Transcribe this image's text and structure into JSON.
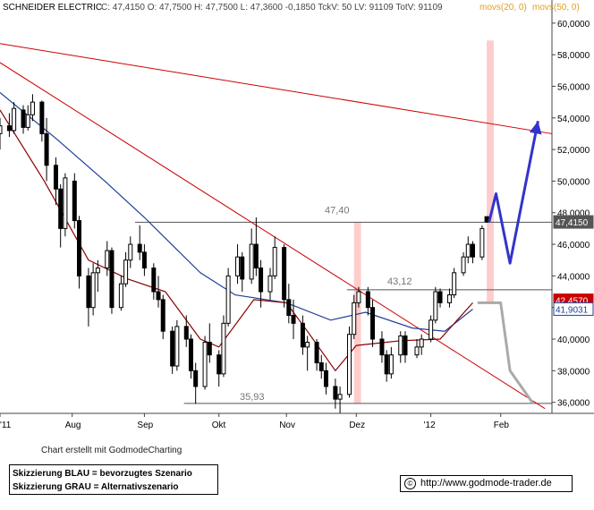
{
  "header": {
    "symbol": "SCHNEIDER ELECTRIC",
    "quote": "C: 47,4150 O: 47,7500 H: 47,7500 L: 47,3600 -0,1850 TckV: 50 LV: 91109 TotV: 91109",
    "ma1_label": "movs(20, 0)",
    "ma2_label": "movs(50, 0)"
  },
  "credit": "Chart erstellt mit GodmodeCharting",
  "legend": {
    "line1": "Skizzierung BLAU = bevorzugtes Szenario",
    "line2": "Skizzierung GRAU = Alternativszenario"
  },
  "url": "http://www.godmode-trader.de",
  "copyright_icon": "copyright-icon",
  "colors": {
    "candle": "#000000",
    "ma20": "#8b0000",
    "ma50": "#1f3f9a",
    "trendline": "#cc0000",
    "level_line": "#555555",
    "highlight": "#ffcccc",
    "scenario_blue": "#3333cc",
    "scenario_gray": "#aaaaaa",
    "last_price_box": "#555555",
    "ma20_box": "#cc0000",
    "ma50_box": "#1f3f9a"
  },
  "chart_data": {
    "type": "candlestick",
    "ylim": [
      35.3,
      60.5
    ],
    "y_ticks": [
      "36,0000",
      "38,0000",
      "40,0000",
      "42,0000",
      "44,0000",
      "46,0000",
      "48,0000",
      "50,0000",
      "52,0000",
      "54,0000",
      "56,0000",
      "58,0000",
      "60,0000"
    ],
    "x_labels": [
      {
        "label": "'11",
        "date": "2011-07-01"
      },
      {
        "label": "Aug",
        "date": "2011-08-01"
      },
      {
        "label": "Sep",
        "date": "2011-09-01"
      },
      {
        "label": "Okt",
        "date": "2011-10-03"
      },
      {
        "label": "Nov",
        "date": "2011-11-01"
      },
      {
        "label": "Dez",
        "date": "2011-12-01"
      },
      {
        "label": "'12",
        "date": "2012-01-02"
      },
      {
        "label": "Feb",
        "date": "2012-02-01"
      }
    ],
    "x_range": [
      "2011-07-01",
      "2012-02-23"
    ],
    "last_price": "47,4150",
    "ma20_value": "42,4570",
    "ma50_value": "41,9031",
    "levels": [
      {
        "value": 47.4,
        "label": "47,40",
        "start": "2011-08-28",
        "end": "2012-02-23"
      },
      {
        "value": 43.12,
        "label": "43,12",
        "start": "2011-11-27",
        "end": "2012-02-23"
      },
      {
        "value": 35.93,
        "label": "35,93",
        "start": "2011-09-18",
        "end": "2012-02-23"
      }
    ],
    "trendlines": [
      {
        "from": [
          "2011-07-01",
          58.7
        ],
        "to": [
          "2012-02-23",
          53.0
        ]
      },
      {
        "from": [
          "2011-07-01",
          57.5
        ],
        "to": [
          "2012-02-20",
          35.6
        ]
      }
    ],
    "highlights": [
      {
        "start": "2011-11-30",
        "end": "2011-12-03",
        "y1": 35.9,
        "y2": 47.4
      },
      {
        "start": "2012-01-26",
        "end": "2012-01-29",
        "y1": 42.3,
        "y2": 58.9
      }
    ],
    "blue_scenario": [
      [
        "2012-01-27",
        47.4
      ],
      [
        "2012-01-30",
        49.2
      ],
      [
        "2012-02-05",
        44.8
      ],
      [
        "2012-02-17",
        53.8
      ]
    ],
    "gray_scenario": [
      [
        "2012-01-22",
        42.3
      ],
      [
        "2012-01-29",
        42.3
      ],
      [
        "2012-02-01",
        42.3
      ],
      [
        "2012-02-05",
        38.0
      ],
      [
        "2012-02-15",
        35.9
      ]
    ],
    "ma20": [
      [
        "2011-07-01",
        54.5
      ],
      [
        "2011-07-20",
        50.0
      ],
      [
        "2011-08-08",
        45.0
      ],
      [
        "2011-08-25",
        43.8
      ],
      [
        "2011-09-10",
        43.0
      ],
      [
        "2011-09-25",
        40.0
      ],
      [
        "2011-10-03",
        39.5
      ],
      [
        "2011-10-18",
        42.5
      ],
      [
        "2011-11-01",
        42.3
      ],
      [
        "2011-11-10",
        40.5
      ],
      [
        "2011-11-22",
        38.0
      ],
      [
        "2011-12-01",
        39.6
      ],
      [
        "2011-12-20",
        39.9
      ],
      [
        "2012-01-06",
        40.0
      ],
      [
        "2012-01-20",
        42.3
      ]
    ],
    "ma50": [
      [
        "2011-07-01",
        55.6
      ],
      [
        "2011-07-25",
        52.7
      ],
      [
        "2011-08-15",
        50.0
      ],
      [
        "2011-09-01",
        47.7
      ],
      [
        "2011-09-25",
        44.2
      ],
      [
        "2011-10-10",
        42.8
      ],
      [
        "2011-11-01",
        42.3
      ],
      [
        "2011-11-20",
        41.2
      ],
      [
        "2011-12-05",
        41.7
      ],
      [
        "2011-12-25",
        40.7
      ],
      [
        "2012-01-08",
        40.5
      ],
      [
        "2012-01-20",
        41.9
      ]
    ],
    "candles": [
      {
        "d": "2011-07-01",
        "o": 53.0,
        "h": 54.0,
        "l": 52.0,
        "c": 53.5
      },
      {
        "d": "2011-07-05",
        "o": 53.5,
        "h": 54.3,
        "l": 52.8,
        "c": 53.2
      },
      {
        "d": "2011-07-07",
        "o": 53.2,
        "h": 55.0,
        "l": 53.0,
        "c": 54.6
      },
      {
        "d": "2011-07-11",
        "o": 54.5,
        "h": 54.8,
        "l": 53.0,
        "c": 53.4
      },
      {
        "d": "2011-07-13",
        "o": 53.4,
        "h": 54.8,
        "l": 53.2,
        "c": 54.2
      },
      {
        "d": "2011-07-15",
        "o": 54.2,
        "h": 55.5,
        "l": 53.8,
        "c": 55.0
      },
      {
        "d": "2011-07-19",
        "o": 55.0,
        "h": 55.1,
        "l": 52.5,
        "c": 53.0
      },
      {
        "d": "2011-07-21",
        "o": 53.0,
        "h": 54.0,
        "l": 50.0,
        "c": 51.0
      },
      {
        "d": "2011-07-25",
        "o": 51.0,
        "h": 51.5,
        "l": 48.5,
        "c": 49.5
      },
      {
        "d": "2011-07-27",
        "o": 49.5,
        "h": 49.8,
        "l": 45.8,
        "c": 47.0
      },
      {
        "d": "2011-07-29",
        "o": 47.0,
        "h": 50.5,
        "l": 46.5,
        "c": 50.2
      },
      {
        "d": "2011-08-02",
        "o": 50.0,
        "h": 50.5,
        "l": 47.0,
        "c": 47.5
      },
      {
        "d": "2011-08-04",
        "o": 47.5,
        "h": 47.8,
        "l": 43.2,
        "c": 44.0
      },
      {
        "d": "2011-08-08",
        "o": 44.0,
        "h": 44.5,
        "l": 40.8,
        "c": 42.0
      },
      {
        "d": "2011-08-10",
        "o": 42.0,
        "h": 44.8,
        "l": 41.5,
        "c": 44.2
      },
      {
        "d": "2011-08-12",
        "o": 44.2,
        "h": 45.0,
        "l": 43.0,
        "c": 44.5
      },
      {
        "d": "2011-08-16",
        "o": 44.5,
        "h": 46.2,
        "l": 44.0,
        "c": 45.6
      },
      {
        "d": "2011-08-18",
        "o": 45.6,
        "h": 45.8,
        "l": 41.6,
        "c": 42.0
      },
      {
        "d": "2011-08-22",
        "o": 42.0,
        "h": 44.0,
        "l": 41.8,
        "c": 43.5
      },
      {
        "d": "2011-08-24",
        "o": 43.5,
        "h": 45.5,
        "l": 43.3,
        "c": 45.0
      },
      {
        "d": "2011-08-26",
        "o": 45.0,
        "h": 46.5,
        "l": 44.5,
        "c": 46.0
      },
      {
        "d": "2011-08-30",
        "o": 46.0,
        "h": 47.2,
        "l": 45.0,
        "c": 45.5
      },
      {
        "d": "2011-09-01",
        "o": 45.5,
        "h": 46.0,
        "l": 44.0,
        "c": 44.5
      },
      {
        "d": "2011-09-05",
        "o": 44.5,
        "h": 44.8,
        "l": 42.5,
        "c": 43.0
      },
      {
        "d": "2011-09-07",
        "o": 43.0,
        "h": 44.0,
        "l": 42.0,
        "c": 42.5
      },
      {
        "d": "2011-09-09",
        "o": 42.5,
        "h": 42.8,
        "l": 40.0,
        "c": 40.5
      },
      {
        "d": "2011-09-13",
        "o": 40.5,
        "h": 40.8,
        "l": 37.8,
        "c": 38.3
      },
      {
        "d": "2011-09-15",
        "o": 38.3,
        "h": 41.2,
        "l": 38.0,
        "c": 40.8
      },
      {
        "d": "2011-09-19",
        "o": 40.8,
        "h": 41.5,
        "l": 39.5,
        "c": 40.0
      },
      {
        "d": "2011-09-21",
        "o": 40.0,
        "h": 40.3,
        "l": 37.5,
        "c": 38.0
      },
      {
        "d": "2011-09-23",
        "o": 38.0,
        "h": 38.5,
        "l": 35.9,
        "c": 37.0
      },
      {
        "d": "2011-09-27",
        "o": 37.0,
        "h": 40.2,
        "l": 36.8,
        "c": 39.8
      },
      {
        "d": "2011-09-29",
        "o": 39.8,
        "h": 41.0,
        "l": 38.5,
        "c": 39.0
      },
      {
        "d": "2011-10-03",
        "o": 39.0,
        "h": 39.3,
        "l": 37.0,
        "c": 37.8
      },
      {
        "d": "2011-10-05",
        "o": 37.8,
        "h": 41.5,
        "l": 37.6,
        "c": 41.0
      },
      {
        "d": "2011-10-07",
        "o": 41.0,
        "h": 44.5,
        "l": 40.8,
        "c": 44.0
      },
      {
        "d": "2011-10-11",
        "o": 44.0,
        "h": 46.0,
        "l": 43.5,
        "c": 45.2
      },
      {
        "d": "2011-10-13",
        "o": 45.2,
        "h": 45.5,
        "l": 43.0,
        "c": 43.8
      },
      {
        "d": "2011-10-17",
        "o": 43.8,
        "h": 47.0,
        "l": 43.5,
        "c": 46.0
      },
      {
        "d": "2011-10-19",
        "o": 46.0,
        "h": 47.7,
        "l": 44.0,
        "c": 44.5
      },
      {
        "d": "2011-10-21",
        "o": 44.5,
        "h": 45.0,
        "l": 42.0,
        "c": 43.0
      },
      {
        "d": "2011-10-25",
        "o": 43.0,
        "h": 44.5,
        "l": 42.5,
        "c": 44.0
      },
      {
        "d": "2011-10-27",
        "o": 44.0,
        "h": 46.5,
        "l": 43.8,
        "c": 45.8
      },
      {
        "d": "2011-10-31",
        "o": 45.8,
        "h": 46.0,
        "l": 42.0,
        "c": 42.5
      },
      {
        "d": "2011-11-02",
        "o": 42.5,
        "h": 43.5,
        "l": 41.0,
        "c": 41.5
      },
      {
        "d": "2011-11-04",
        "o": 41.5,
        "h": 42.5,
        "l": 40.0,
        "c": 41.0
      },
      {
        "d": "2011-11-08",
        "o": 41.0,
        "h": 41.5,
        "l": 39.0,
        "c": 39.5
      },
      {
        "d": "2011-11-10",
        "o": 39.5,
        "h": 40.2,
        "l": 38.0,
        "c": 39.8
      },
      {
        "d": "2011-11-14",
        "o": 39.8,
        "h": 40.0,
        "l": 38.0,
        "c": 38.5
      },
      {
        "d": "2011-11-16",
        "o": 38.5,
        "h": 39.0,
        "l": 37.5,
        "c": 38.0
      },
      {
        "d": "2011-11-18",
        "o": 38.0,
        "h": 38.5,
        "l": 36.5,
        "c": 37.0
      },
      {
        "d": "2011-11-22",
        "o": 37.0,
        "h": 37.5,
        "l": 35.6,
        "c": 36.2
      },
      {
        "d": "2011-11-24",
        "o": 36.2,
        "h": 37.0,
        "l": 35.3,
        "c": 36.5
      },
      {
        "d": "2011-11-28",
        "o": 36.5,
        "h": 40.8,
        "l": 36.3,
        "c": 40.3
      },
      {
        "d": "2011-11-30",
        "o": 40.3,
        "h": 42.8,
        "l": 40.0,
        "c": 42.3
      },
      {
        "d": "2011-12-02",
        "o": 42.3,
        "h": 43.3,
        "l": 42.0,
        "c": 43.0
      },
      {
        "d": "2011-12-06",
        "o": 43.0,
        "h": 43.3,
        "l": 41.5,
        "c": 42.0
      },
      {
        "d": "2011-12-08",
        "o": 42.0,
        "h": 42.5,
        "l": 39.5,
        "c": 40.0
      },
      {
        "d": "2011-12-12",
        "o": 40.0,
        "h": 40.5,
        "l": 38.5,
        "c": 39.0
      },
      {
        "d": "2011-12-14",
        "o": 39.0,
        "h": 39.3,
        "l": 37.3,
        "c": 37.8
      },
      {
        "d": "2011-12-16",
        "o": 37.8,
        "h": 39.5,
        "l": 37.5,
        "c": 39.0
      },
      {
        "d": "2011-12-20",
        "o": 39.0,
        "h": 40.5,
        "l": 38.5,
        "c": 40.2
      },
      {
        "d": "2011-12-22",
        "o": 40.2,
        "h": 40.5,
        "l": 38.5,
        "c": 39.0
      },
      {
        "d": "2011-12-27",
        "o": 39.0,
        "h": 40.0,
        "l": 38.8,
        "c": 39.5
      },
      {
        "d": "2011-12-29",
        "o": 39.5,
        "h": 40.3,
        "l": 39.0,
        "c": 40.0
      },
      {
        "d": "2012-01-02",
        "o": 40.0,
        "h": 41.5,
        "l": 39.8,
        "c": 41.2
      },
      {
        "d": "2012-01-04",
        "o": 41.2,
        "h": 43.3,
        "l": 41.0,
        "c": 43.0
      },
      {
        "d": "2012-01-06",
        "o": 43.0,
        "h": 43.2,
        "l": 42.0,
        "c": 42.3
      },
      {
        "d": "2012-01-10",
        "o": 42.3,
        "h": 43.2,
        "l": 42.0,
        "c": 42.8
      },
      {
        "d": "2012-01-12",
        "o": 42.8,
        "h": 44.5,
        "l": 42.6,
        "c": 44.2
      },
      {
        "d": "2012-01-16",
        "o": 44.2,
        "h": 45.5,
        "l": 44.0,
        "c": 45.2
      },
      {
        "d": "2012-01-18",
        "o": 45.2,
        "h": 46.5,
        "l": 44.8,
        "c": 46.0
      },
      {
        "d": "2012-01-20",
        "o": 46.0,
        "h": 46.2,
        "l": 44.8,
        "c": 45.2
      },
      {
        "d": "2012-01-24",
        "o": 45.2,
        "h": 47.2,
        "l": 45.0,
        "c": 47.0
      },
      {
        "d": "2012-01-26",
        "o": 47.75,
        "h": 47.75,
        "l": 47.36,
        "c": 47.415
      }
    ]
  }
}
